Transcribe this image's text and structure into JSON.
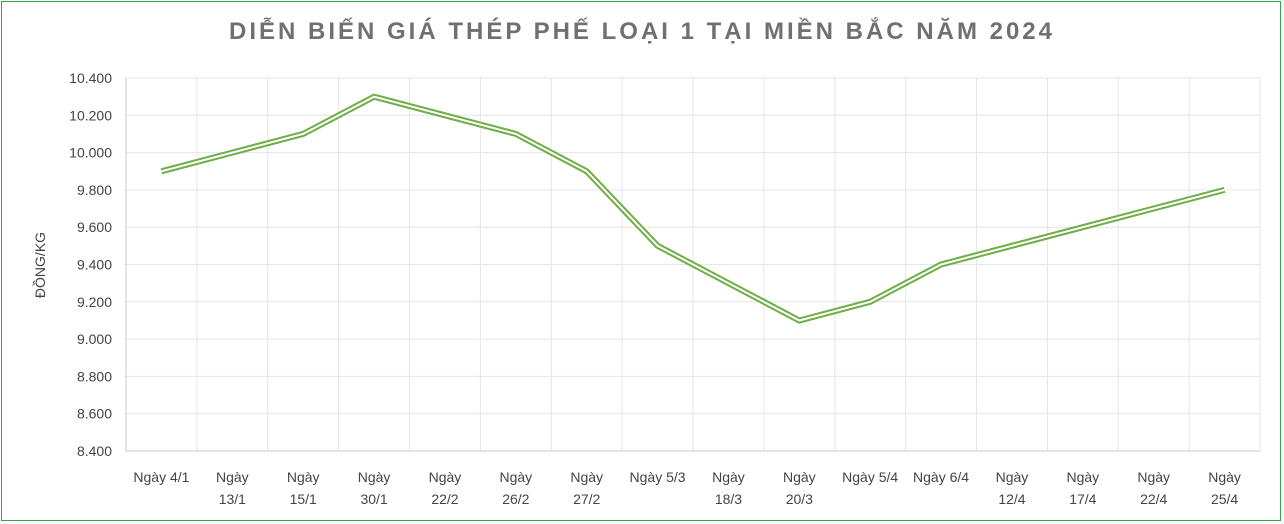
{
  "chart_data": {
    "type": "line",
    "title": "DIỄN BIẾN GIÁ THÉP PHẾ LOẠI 1 TẠI MIỀN BẮC NĂM 2024",
    "xlabel": "",
    "ylabel": "ĐỒNG/KG",
    "ylim": [
      8400,
      10400
    ],
    "ytick_step": 200,
    "yticks": [
      "8.400",
      "8.600",
      "8.800",
      "9.000",
      "9.200",
      "9.400",
      "9.600",
      "9.800",
      "10.000",
      "10.200",
      "10.400"
    ],
    "grid": true,
    "legend": "none",
    "categories": [
      "Ngày 4/1",
      "Ngày 13/1",
      "Ngày 15/1",
      "Ngày 30/1",
      "Ngày 22/2",
      "Ngày 26/2",
      "Ngày 27/2",
      "Ngày 5/3",
      "Ngày 18/3",
      "Ngày 20/3",
      "Ngày 5/4",
      "Ngày 6/4",
      "Ngày 12/4",
      "Ngày 17/4",
      "Ngày 22/4",
      "Ngày 25/4"
    ],
    "category_lines": [
      [
        "Ngày 4/1"
      ],
      [
        "Ngày",
        "13/1"
      ],
      [
        "Ngày",
        "15/1"
      ],
      [
        "Ngày",
        "30/1"
      ],
      [
        "Ngày",
        "22/2"
      ],
      [
        "Ngày",
        "26/2"
      ],
      [
        "Ngày",
        "27/2"
      ],
      [
        "Ngày 5/3"
      ],
      [
        "Ngày",
        "18/3"
      ],
      [
        "Ngày",
        "20/3"
      ],
      [
        "Ngày 5/4"
      ],
      [
        "Ngày 6/4"
      ],
      [
        "Ngày",
        "12/4"
      ],
      [
        "Ngày",
        "17/4"
      ],
      [
        "Ngày",
        "22/4"
      ],
      [
        "Ngày",
        "25/4"
      ]
    ],
    "series": [
      {
        "values": [
          9900,
          10000,
          10100,
          10300,
          10200,
          10100,
          9900,
          9500,
          9300,
          9100,
          9200,
          9400,
          9500,
          9600,
          9700,
          9800
        ]
      }
    ],
    "line_color": "#70ad47",
    "grid_color": "#e6e6e6",
    "axis_color": "#c8c8c8"
  }
}
